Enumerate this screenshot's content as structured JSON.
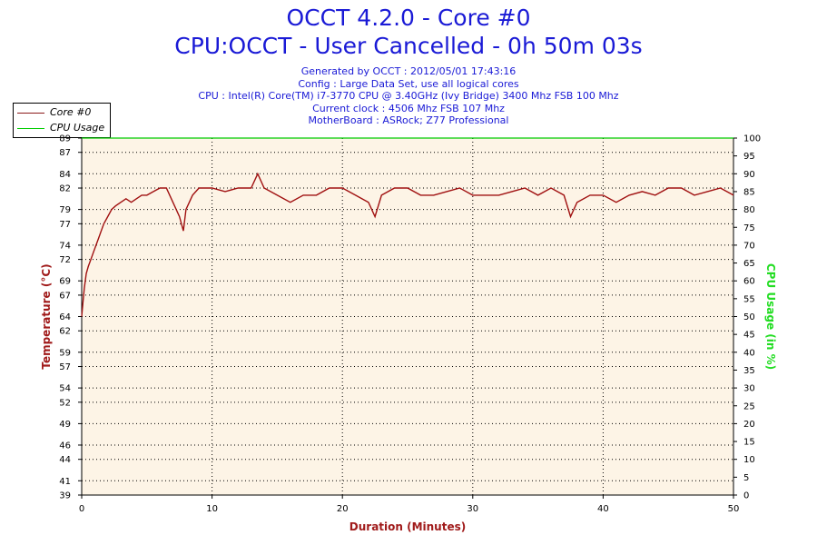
{
  "header": {
    "title_line1": "OCCT 4.2.0 - Core #0",
    "title_line2": "CPU:OCCT - User Cancelled - 0h 50m 03s",
    "info_lines": [
      "Generated by OCCT : 2012/05/01 17:43:16",
      "Config : Large Data Set, use all logical cores",
      "CPU : Intel(R) Core(TM) i7-3770 CPU @ 3.40GHz (Ivy Bridge) 3400 Mhz FSB 100 Mhz",
      "Current clock : 4506 Mhz FSB 107 Mhz",
      "MotherBoard : ASRock; Z77 Professional"
    ]
  },
  "legend": {
    "items": [
      {
        "label": "Core #0",
        "color": "#8b1a1a"
      },
      {
        "label": "CPU Usage",
        "color": "#00cc00"
      }
    ]
  },
  "colors": {
    "plot_bg": "#fdf4e6",
    "temp_line": "#a01010",
    "left_axis_label": "#a01a1a",
    "right_axis_label": "#22dd22",
    "x_axis_label": "#a01a1a",
    "title": "#1a1ad6"
  },
  "chart_data": {
    "type": "line",
    "xlabel": "Duration (Minutes)",
    "ylabel": "Temperature (°C)",
    "y2label": "CPU Usage (in %)",
    "xlim": [
      0,
      50
    ],
    "ylim": [
      39,
      89
    ],
    "y2lim": [
      0,
      100
    ],
    "x_ticks": [
      0,
      10,
      20,
      30,
      40,
      50
    ],
    "y_ticks": [
      39,
      41,
      44,
      46,
      49,
      52,
      54,
      57,
      59,
      62,
      64,
      67,
      69,
      72,
      74,
      77,
      79,
      82,
      84,
      87,
      89
    ],
    "y_tick_labels": [
      "39",
      "41",
      "44",
      "46",
      "49",
      "52",
      "54",
      "57",
      "59",
      "62",
      "64",
      "67",
      "69",
      "72",
      "74",
      "77",
      "79",
      "82",
      "84",
      "87",
      "89"
    ],
    "y2_ticks": [
      0,
      5,
      10,
      15,
      20,
      25,
      30,
      35,
      40,
      45,
      50,
      55,
      60,
      65,
      70,
      75,
      80,
      85,
      90,
      95,
      100
    ],
    "grid": true,
    "series": [
      {
        "name": "Core #0",
        "color": "#a01010",
        "x": [
          0,
          0.1,
          0.2,
          0.35,
          0.5,
          0.7,
          0.9,
          1.1,
          1.3,
          1.5,
          1.7,
          2.0,
          2.3,
          2.6,
          3.0,
          3.4,
          3.8,
          4.2,
          4.6,
          5.0,
          5.5,
          6.0,
          6.5,
          7.0,
          7.5,
          7.8,
          8.0,
          8.5,
          9.0,
          9.5,
          10.0,
          11,
          12,
          13,
          13.5,
          14,
          15,
          16,
          17,
          18,
          19,
          20,
          21,
          22,
          22.5,
          23,
          24,
          25,
          26,
          27,
          28,
          29,
          30,
          31,
          32,
          33,
          34,
          35,
          36,
          37,
          37.5,
          38,
          39,
          40,
          41,
          42,
          43,
          44,
          45,
          46,
          47,
          48,
          49,
          50
        ],
        "y": [
          64,
          66,
          68,
          70,
          71,
          72,
          73,
          74,
          75,
          76,
          77,
          78,
          79,
          79.5,
          80,
          80.5,
          80,
          80.5,
          81,
          81,
          81.5,
          82,
          82,
          80,
          78,
          76,
          79,
          81,
          82,
          82,
          82,
          81.5,
          82,
          82,
          84,
          82,
          81,
          80,
          81,
          81,
          82,
          82,
          81,
          80,
          78,
          81,
          82,
          82,
          81,
          81,
          81.5,
          82,
          81,
          81,
          81,
          81.5,
          82,
          81,
          82,
          81,
          78,
          80,
          81,
          81,
          80,
          81,
          81.5,
          81,
          82,
          82,
          81,
          81.5,
          82,
          81
        ]
      },
      {
        "name": "CPU Usage",
        "color": "#00cc00",
        "x": [
          0,
          50
        ],
        "y": [
          100,
          100
        ]
      }
    ]
  }
}
